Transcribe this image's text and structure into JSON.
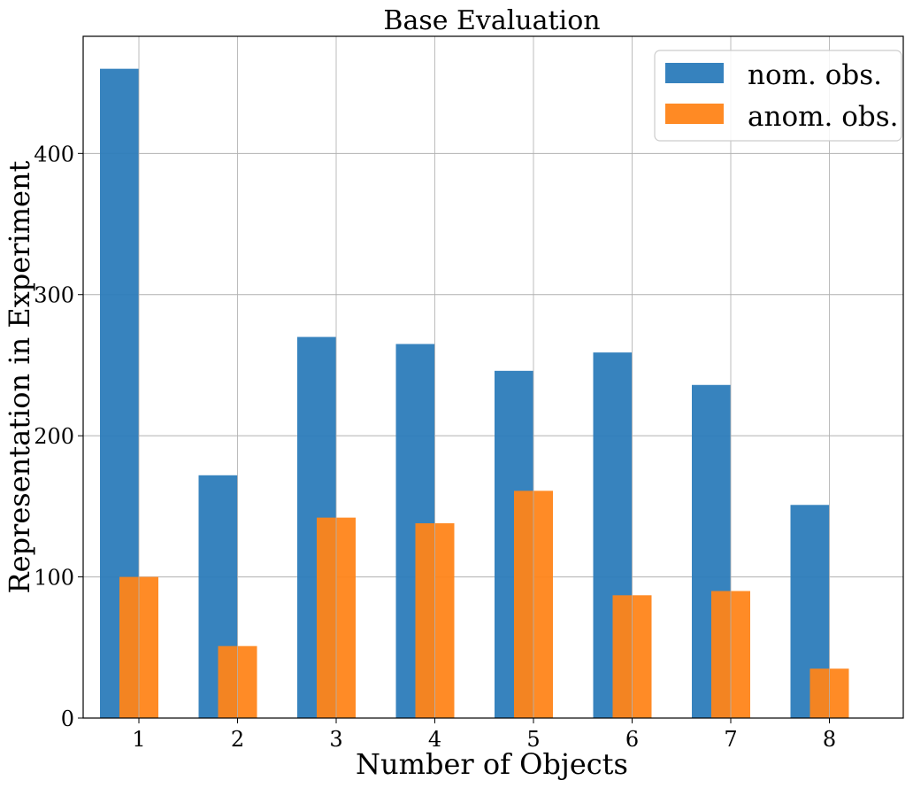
{
  "chart_data": {
    "type": "bar",
    "title": "Base Evaluation",
    "xlabel": "Number of Objects",
    "ylabel": "Representation in Experiment",
    "categories": [
      "1",
      "2",
      "3",
      "4",
      "5",
      "6",
      "7",
      "8"
    ],
    "series": [
      {
        "name": "nom. obs.",
        "color": "#2b7bba",
        "values": [
          460,
          172,
          270,
          265,
          246,
          259,
          236,
          151
        ]
      },
      {
        "name": "anom. obs.",
        "color": "#ff8418",
        "values": [
          100,
          51,
          142,
          138,
          161,
          87,
          90,
          35
        ]
      }
    ],
    "yticks": [
      0,
      100,
      200,
      300,
      400
    ],
    "ylim": [
      0,
      483
    ],
    "grid": true,
    "legend_position": "top-right"
  }
}
